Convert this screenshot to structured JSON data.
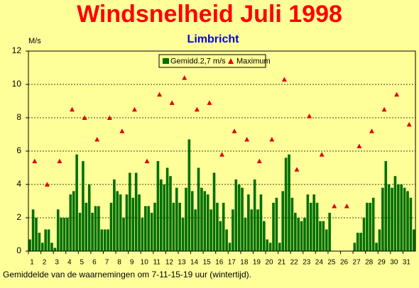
{
  "chart_data": {
    "type": "bar",
    "title": "Windsnelheid Juli 1998",
    "subtitle": "Limbricht",
    "ylabel": "M/s",
    "note": "Gemiddelde van de waarnemingen om 7-11-15-19 uur (wintertijd).",
    "categories": [
      "1",
      "2",
      "3",
      "4",
      "5",
      "6",
      "7",
      "8",
      "9",
      "10",
      "11",
      "12",
      "13",
      "14",
      "15",
      "16",
      "17",
      "18",
      "19",
      "20",
      "21",
      "22",
      "23",
      "24",
      "25",
      "26",
      "27",
      "28",
      "29",
      "30",
      "31"
    ],
    "series": [
      {
        "name": "Gemidd.2,7 m/s",
        "type": "bar",
        "color": "#006f00",
        "values": [
          [
            0.7,
            2.5,
            2.0,
            1.1
          ],
          [
            0.5,
            1.3,
            1.3,
            0.5
          ],
          [
            0.2,
            2.5,
            2.0,
            2.0
          ],
          [
            2.0,
            3.4,
            3.6,
            5.8
          ],
          [
            2.3,
            5.4,
            2.9,
            4.0
          ],
          [
            2.3,
            2.7,
            2.7,
            1.3
          ],
          [
            1.3,
            1.3,
            2.9,
            4.3
          ],
          [
            3.6,
            3.4,
            2.0,
            3.4
          ],
          [
            4.7,
            3.2,
            4.7,
            3.4
          ],
          [
            2.0,
            2.7,
            2.7,
            2.3
          ],
          [
            2.9,
            5.4,
            4.3,
            4.0
          ],
          [
            5.0,
            4.5,
            2.9,
            3.8
          ],
          [
            2.9,
            2.0,
            3.8,
            6.7
          ],
          [
            3.6,
            2.5,
            5.0,
            3.8
          ],
          [
            3.6,
            3.4,
            2.5,
            4.7
          ],
          [
            2.9,
            1.8,
            2.9,
            1.3
          ],
          [
            0.5,
            2.5,
            4.3,
            4.0
          ],
          [
            3.8,
            2.0,
            3.4,
            2.5
          ],
          [
            4.3,
            2.5,
            3.4,
            1.8
          ],
          [
            0.7,
            0.5,
            2.9,
            3.2
          ],
          [
            0.5,
            3.6,
            5.6,
            5.8
          ],
          [
            3.2,
            2.3,
            2.0,
            1.8
          ],
          [
            2.0,
            3.4,
            2.9,
            3.4
          ],
          [
            2.9,
            1.8,
            1.8,
            1.3
          ],
          [
            2.3,
            0,
            0,
            0
          ],
          [
            0,
            0,
            0,
            0
          ],
          [
            0.5,
            1.1,
            1.1,
            2.0
          ],
          [
            2.9,
            2.9,
            3.2,
            0.5
          ],
          [
            1.3,
            3.8,
            5.4,
            4.0
          ],
          [
            3.8,
            4.5,
            4.0,
            4.0
          ],
          [
            3.8,
            3.6,
            3.2,
            1.3
          ]
        ]
      },
      {
        "name": "Maximum",
        "type": "scatter",
        "color": "#e00000",
        "values": [
          5.4,
          4.0,
          5.4,
          8.5,
          8.0,
          6.7,
          8.0,
          7.2,
          8.5,
          5.4,
          9.4,
          8.9,
          10.4,
          8.5,
          8.9,
          5.8,
          7.2,
          6.7,
          5.4,
          6.7,
          10.3,
          4.9,
          8.1,
          5.8,
          2.7,
          2.7,
          6.3,
          7.2,
          8.5,
          9.4,
          7.6
        ]
      }
    ],
    "ylim": [
      0,
      12
    ],
    "yticks": [
      0,
      2,
      4,
      6,
      8,
      10,
      12
    ],
    "grid": true
  }
}
